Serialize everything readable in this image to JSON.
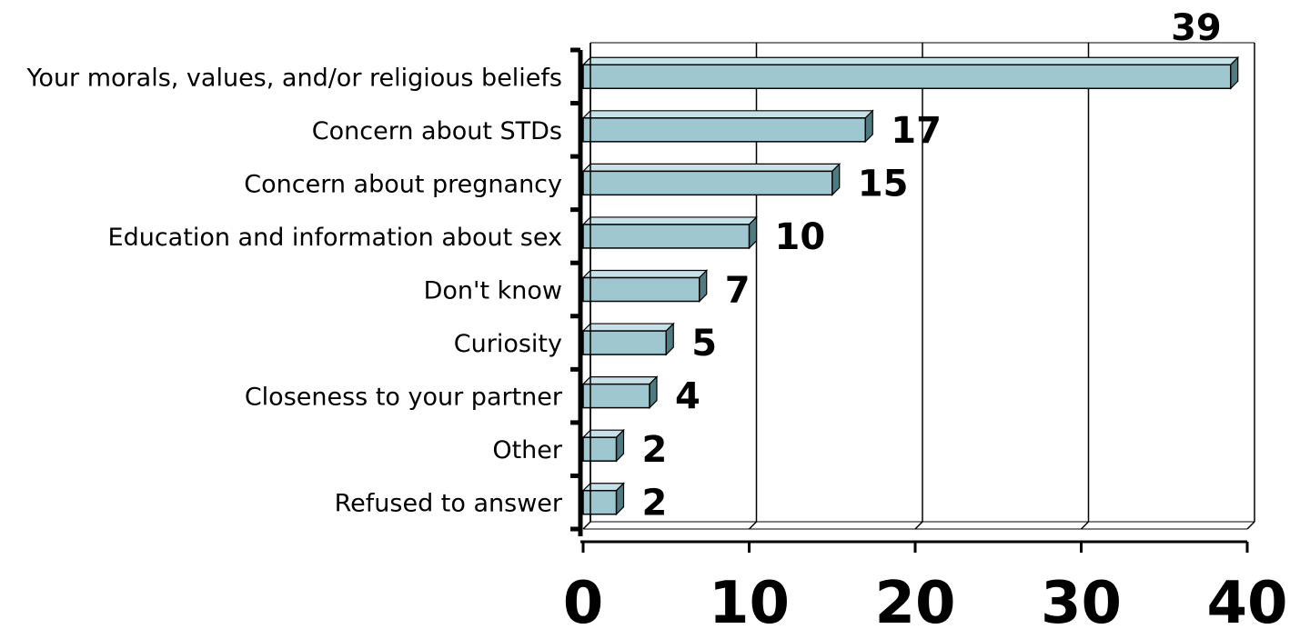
{
  "chart_data": {
    "type": "bar",
    "orientation": "horizontal",
    "categories": [
      "Your morals, values, and/or religious beliefs",
      "Concern about STDs",
      "Concern about pregnancy",
      "Education and information about sex",
      "Don't know",
      "Curiosity",
      "Closeness to your partner",
      "Other",
      "Refused to answer"
    ],
    "values": [
      39,
      17,
      15,
      10,
      7,
      5,
      4,
      2,
      2
    ],
    "value_labels": [
      "39",
      "17",
      "15",
      "10",
      "7",
      "5",
      "4",
      "2",
      "2"
    ],
    "x_ticks": [
      "0",
      "10",
      "20",
      "30",
      "40"
    ],
    "xlim": [
      0,
      40
    ],
    "grid": "vertical",
    "legend": "none",
    "colors": {
      "bar_front": "#9ec7d0",
      "bar_top": "#c4e2e8",
      "bar_side": "#4f7b80",
      "edge": "#000000"
    }
  }
}
